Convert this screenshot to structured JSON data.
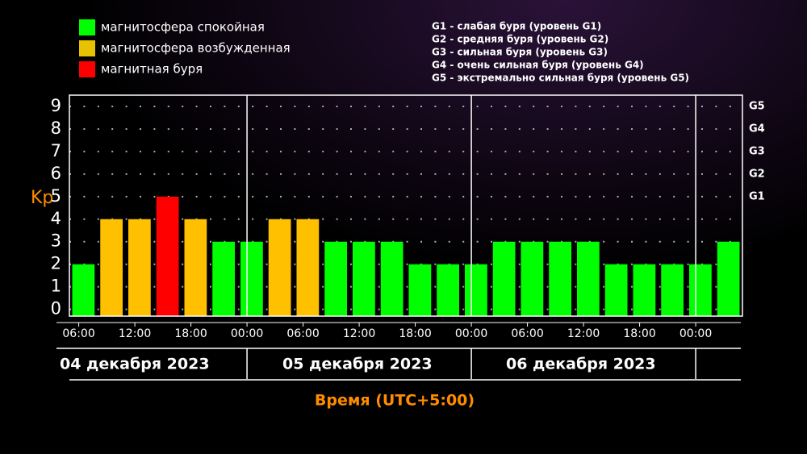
{
  "chart_data": {
    "type": "histogram",
    "y_label": "Kp",
    "x_label": "Время (UTC+5:00)",
    "legend": [
      {
        "label": "магнитосфера спокойная",
        "color": "#00ff00"
      },
      {
        "label": "магнитосфера возбужденная",
        "color": "#e6c200"
      },
      {
        "label": "магнитная буря",
        "color": "#ff0000"
      }
    ],
    "g_legend": [
      "G1 - слабая буря (уровень G1)",
      "G2 - средняя буря (уровень G2)",
      "G3 - сильная буря (уровень G3)",
      "G4 - очень сильная буря (уровень G4)",
      "G5 - экстремально сильная буря (уровень G5)"
    ],
    "bins": [
      5,
      8,
      11,
      14,
      17,
      20,
      23,
      26,
      29,
      32,
      35,
      38,
      41,
      44,
      47,
      50,
      53,
      56,
      59,
      62,
      65,
      68,
      71,
      74,
      77
    ],
    "values": [
      2,
      4,
      4,
      5,
      4,
      3,
      3,
      4,
      4,
      3,
      3,
      3,
      2,
      2,
      2,
      3,
      3,
      3,
      3,
      2,
      2,
      2,
      2,
      3
    ],
    "colors": [
      "#00ff00",
      "#ffc000",
      "#ffc000",
      "#ff0000",
      "#ffc000",
      "#00ff00",
      "#00ff00",
      "#ffc000",
      "#ffc000",
      "#00ff00",
      "#00ff00",
      "#00ff00",
      "#00ff00",
      "#00ff00",
      "#00ff00",
      "#00ff00",
      "#00ff00",
      "#00ff00",
      "#00ff00",
      "#00ff00",
      "#00ff00",
      "#00ff00",
      "#00ff00",
      "#00ff00"
    ],
    "xlim": [
      5,
      77
    ],
    "xticks": [
      {
        "value": 6,
        "label": "06:00"
      },
      {
        "value": 12,
        "label": "12:00"
      },
      {
        "value": 18,
        "label": "18:00"
      },
      {
        "value": 24,
        "label": "00:00"
      },
      {
        "value": 30,
        "label": "06:00"
      },
      {
        "value": 36,
        "label": "12:00"
      },
      {
        "value": 42,
        "label": "18:00"
      },
      {
        "value": 48,
        "label": "00:00"
      },
      {
        "value": 54,
        "label": "06:00"
      },
      {
        "value": 60,
        "label": "12:00"
      },
      {
        "value": 66,
        "label": "18:00"
      },
      {
        "value": 72,
        "label": "00:00"
      }
    ],
    "day_separators": [
      24,
      48,
      72
    ],
    "day_labels": [
      "04 декабря 2023",
      "05 декабря 2023",
      "06 декабря 2023"
    ],
    "ylim": [
      -0.3,
      9.5
    ],
    "yticks": [
      0,
      1,
      2,
      3,
      4,
      5,
      6,
      7,
      8,
      9
    ],
    "g_ticks": [
      {
        "value": 5,
        "label": "G1"
      },
      {
        "value": 6,
        "label": "G2"
      },
      {
        "value": 7,
        "label": "G3"
      },
      {
        "value": 8,
        "label": "G4"
      },
      {
        "value": 9,
        "label": "G5"
      }
    ],
    "grid": true
  }
}
